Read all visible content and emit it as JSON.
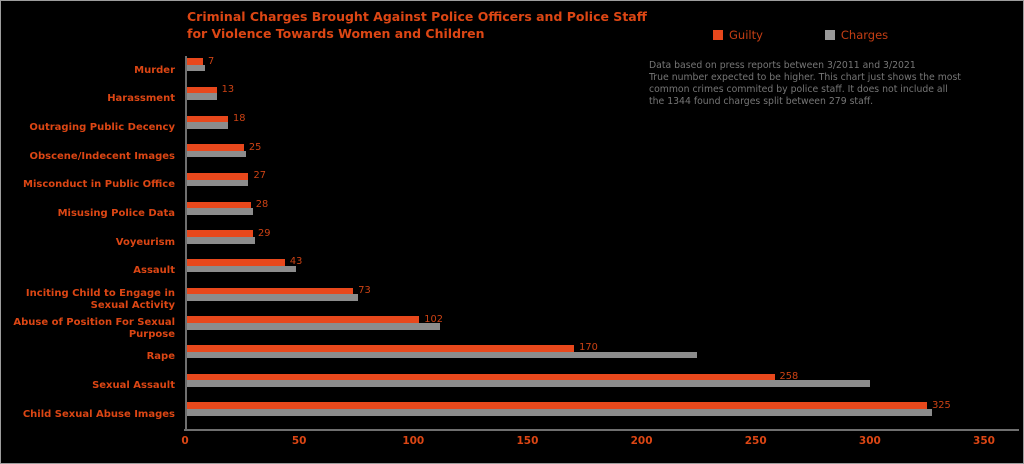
{
  "window": {
    "background": "#000000",
    "border_color": "#9d9d9d"
  },
  "title": {
    "line1": "Criminal Charges Brought Against Police Officers and Police Staff",
    "line2": "for Violence Towards Women and Children"
  },
  "legend": {
    "items": [
      {
        "label": "Guilty",
        "color": "#e8481c"
      },
      {
        "label": "Charges",
        "color": "#9a9a9a"
      }
    ]
  },
  "note": {
    "lines": [
      "Data based on press reports between 3/2011 and 3/2021",
      "True number expected to be higher. This chart just shows the most",
      "common crimes commited by police staff. It does not include all",
      "the 1344 found charges split between 279 staff."
    ]
  },
  "chart_data": {
    "type": "bar",
    "orientation": "horizontal",
    "title": "Criminal Charges Brought Against Police Officers and Police Staff for Violence Towards Women and Children",
    "categories": [
      "Murder",
      "Harassment",
      "Outraging Public Decency",
      "Obscene/Indecent Images",
      "Misconduct in Public Office",
      "Misusing Police Data",
      "Voyeurism",
      "Assault",
      "Inciting Child to Engage in Sexual Activity",
      "Abuse of Position For Sexual Purpose",
      "Rape",
      "Sexual Assault",
      "Child Sexual Abuse Images"
    ],
    "series": [
      {
        "name": "Guilty",
        "color": "#e8481c",
        "values": [
          7,
          13,
          18,
          25,
          27,
          28,
          29,
          43,
          73,
          102,
          170,
          258,
          325
        ],
        "data_labels": true
      },
      {
        "name": "Charges",
        "color": "#8c8c8c",
        "values": [
          8,
          13,
          18,
          26,
          27,
          29,
          30,
          48,
          75,
          111,
          224,
          300,
          327
        ],
        "data_labels": false,
        "values_note": "estimated from bar lengths; no printed labels"
      }
    ],
    "xlabel": "",
    "ylabel": "",
    "xlim": [
      0,
      350
    ],
    "xticks": [
      0,
      50,
      100,
      150,
      200,
      250,
      300,
      350
    ],
    "grid": false,
    "legend_position": "top-right",
    "axis_color": "#6f6f6f",
    "tick_label_color": "#dc4614",
    "value_label_color": "#cc4214"
  }
}
